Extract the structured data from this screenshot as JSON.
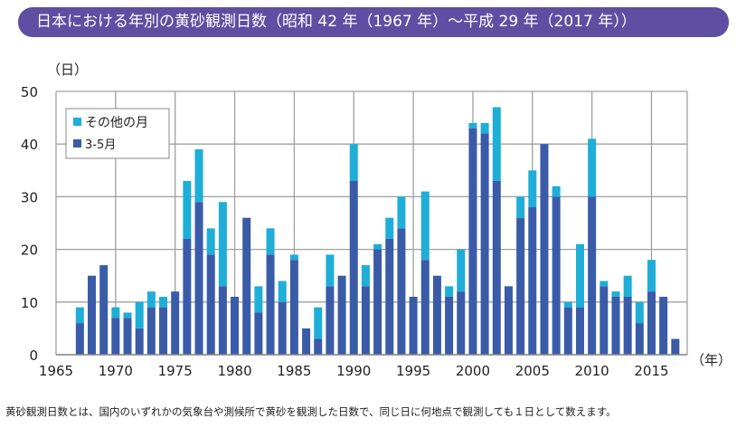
{
  "title": "日本における年別の黄砂観測日数（昭和 42 年（1967 年）～平成 29 年（2017 年））",
  "footnote": "黄砂観測日数とは、国内のいずれかの気象台や測候所で黄砂を観測した日数で、同じ日に何地点で観測しても１日として数えます。",
  "chart_data": {
    "type": "bar",
    "stacked": true,
    "ylabel": "（日）",
    "xlabel": "（年）",
    "ylim": [
      0,
      50
    ],
    "xlim": [
      1965,
      2018
    ],
    "yticks": [
      0,
      10,
      20,
      30,
      40,
      50
    ],
    "xticks": [
      1965,
      1970,
      1975,
      1980,
      1985,
      1990,
      1995,
      2000,
      2005,
      2010,
      2015
    ],
    "grid": true,
    "legend_position": "top-left",
    "colors": {
      "3-5月": "#3a5ba8",
      "その他の月": "#1eaed8",
      "title_bg": "#5e4fa2"
    },
    "x": [
      1967,
      1968,
      1969,
      1970,
      1971,
      1972,
      1973,
      1974,
      1975,
      1976,
      1977,
      1978,
      1979,
      1980,
      1981,
      1982,
      1983,
      1984,
      1985,
      1986,
      1987,
      1988,
      1989,
      1990,
      1991,
      1992,
      1993,
      1994,
      1995,
      1996,
      1997,
      1998,
      1999,
      2000,
      2001,
      2002,
      2003,
      2004,
      2005,
      2006,
      2007,
      2008,
      2009,
      2010,
      2011,
      2012,
      2013,
      2014,
      2015,
      2016,
      2017
    ],
    "series": [
      {
        "name": "3-5月",
        "values": [
          6,
          15,
          17,
          7,
          7,
          5,
          9,
          9,
          12,
          22,
          29,
          19,
          13,
          11,
          26,
          8,
          19,
          10,
          18,
          5,
          3,
          13,
          15,
          33,
          13,
          20,
          22,
          24,
          11,
          18,
          15,
          11,
          12,
          43,
          42,
          33,
          13,
          26,
          28,
          40,
          30,
          9,
          9,
          30,
          13,
          11,
          11,
          6,
          12,
          11,
          3
        ]
      },
      {
        "name": "その他の月",
        "values": [
          3,
          0,
          0,
          2,
          1,
          5,
          3,
          2,
          0,
          11,
          10,
          5,
          16,
          0,
          0,
          5,
          5,
          4,
          1,
          0,
          6,
          6,
          0,
          7,
          4,
          1,
          4,
          6,
          0,
          13,
          0,
          2,
          8,
          1,
          2,
          14,
          0,
          4,
          7,
          0,
          2,
          1,
          12,
          11,
          1,
          1,
          4,
          4,
          6,
          0,
          0
        ]
      }
    ]
  }
}
